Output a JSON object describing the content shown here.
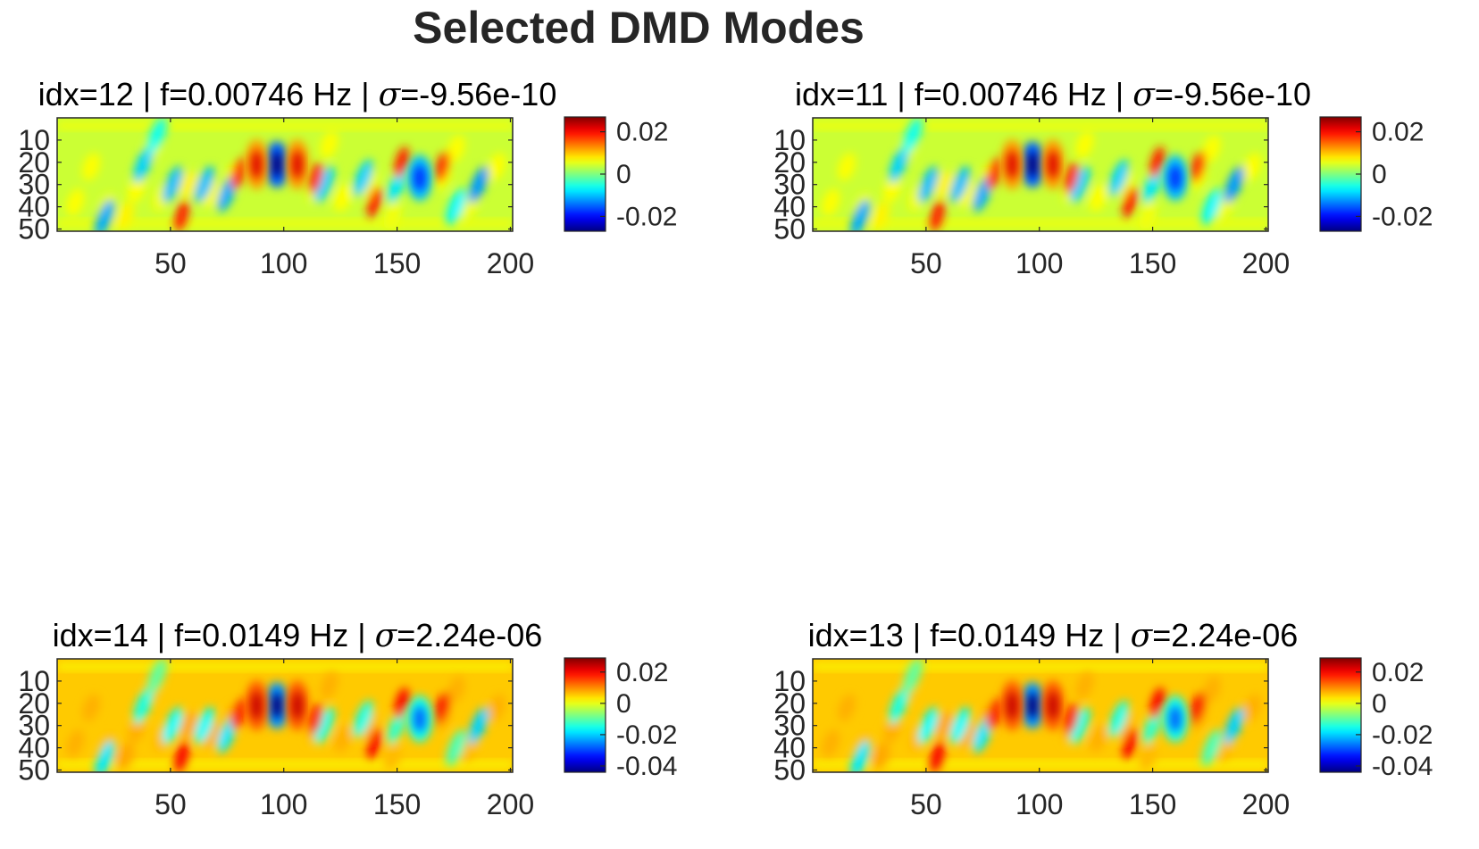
{
  "figure": {
    "title": "Selected DMD Modes"
  },
  "chart_data": [
    {
      "type": "heatmap",
      "title_parts": {
        "idx": "idx=12",
        "freq": "f=0.00746 Hz",
        "sigma_symbol": "σ",
        "sigma_value": "=-9.56e-10"
      },
      "x_ticks": [
        50,
        100,
        150,
        200
      ],
      "y_ticks": [
        10,
        20,
        30,
        40,
        50
      ],
      "xlim": [
        0,
        201
      ],
      "ylim": [
        0,
        51
      ],
      "colorbar": {
        "ticks": [
          "0.02",
          "0",
          "-0.02"
        ],
        "tick_values": [
          0.02,
          0,
          -0.02
        ],
        "clim": [
          -0.027,
          0.027
        ]
      },
      "colormap": "jet",
      "features": [
        {
          "x": 97,
          "y": 21,
          "value": -0.027
        },
        {
          "x": 160,
          "y": 27,
          "value": -0.018
        },
        {
          "x": 88,
          "y": 21,
          "value": 0.022
        },
        {
          "x": 106,
          "y": 21,
          "value": 0.022
        }
      ]
    },
    {
      "type": "heatmap",
      "title_parts": {
        "idx": "idx=11",
        "freq": "f=0.00746 Hz",
        "sigma_symbol": "σ",
        "sigma_value": "=-9.56e-10"
      },
      "x_ticks": [
        50,
        100,
        150,
        200
      ],
      "y_ticks": [
        10,
        20,
        30,
        40,
        50
      ],
      "xlim": [
        0,
        201
      ],
      "ylim": [
        0,
        51
      ],
      "colorbar": {
        "ticks": [
          "0.02",
          "0",
          "-0.02"
        ],
        "tick_values": [
          0.02,
          0,
          -0.02
        ],
        "clim": [
          -0.027,
          0.027
        ]
      },
      "colormap": "jet",
      "features": [
        {
          "x": 97,
          "y": 21,
          "value": -0.027
        },
        {
          "x": 160,
          "y": 27,
          "value": -0.018
        },
        {
          "x": 88,
          "y": 21,
          "value": 0.022
        },
        {
          "x": 106,
          "y": 21,
          "value": 0.022
        }
      ]
    },
    {
      "type": "heatmap",
      "title_parts": {
        "idx": "idx=14",
        "freq": "f=0.0149 Hz",
        "sigma_symbol": "σ",
        "sigma_value": "=2.24e-06"
      },
      "x_ticks": [
        50,
        100,
        150,
        200
      ],
      "y_ticks": [
        10,
        20,
        30,
        40,
        50
      ],
      "xlim": [
        0,
        201
      ],
      "ylim": [
        0,
        51
      ],
      "colorbar": {
        "ticks": [
          "0.02",
          "0",
          "-0.02",
          "-0.04"
        ],
        "tick_values": [
          0.02,
          0,
          -0.02,
          -0.04
        ],
        "clim": [
          -0.044,
          0.029
        ]
      },
      "colormap": "jet",
      "features": [
        {
          "x": 97,
          "y": 21,
          "value": -0.044
        },
        {
          "x": 160,
          "y": 27,
          "value": -0.028
        },
        {
          "x": 88,
          "y": 21,
          "value": 0.024
        },
        {
          "x": 106,
          "y": 21,
          "value": 0.024
        }
      ]
    },
    {
      "type": "heatmap",
      "title_parts": {
        "idx": "idx=13",
        "freq": "f=0.0149 Hz",
        "sigma_symbol": "σ",
        "sigma_value": "=2.24e-06"
      },
      "x_ticks": [
        50,
        100,
        150,
        200
      ],
      "y_ticks": [
        10,
        20,
        30,
        40,
        50
      ],
      "xlim": [
        0,
        201
      ],
      "ylim": [
        0,
        51
      ],
      "colorbar": {
        "ticks": [
          "0.02",
          "0",
          "-0.02",
          "-0.04"
        ],
        "tick_values": [
          0.02,
          0,
          -0.02,
          -0.04
        ],
        "clim": [
          -0.044,
          0.029
        ]
      },
      "colormap": "jet",
      "features": [
        {
          "x": 97,
          "y": 21,
          "value": -0.044
        },
        {
          "x": 160,
          "y": 27,
          "value": -0.028
        },
        {
          "x": 88,
          "y": 21,
          "value": 0.024
        },
        {
          "x": 106,
          "y": 21,
          "value": 0.024
        }
      ]
    }
  ]
}
